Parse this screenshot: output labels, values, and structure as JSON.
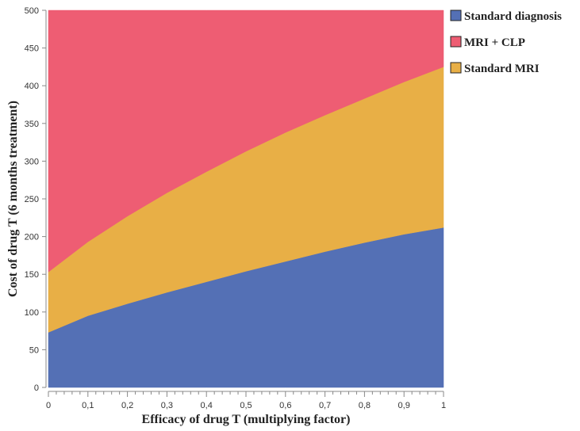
{
  "chart_data": {
    "type": "area",
    "xlabel": "Efficacy of drug T (multiplying factor)",
    "ylabel": "Cost of drug T (6 months treatment)",
    "xlim": [
      0,
      1
    ],
    "ylim": [
      0,
      500
    ],
    "x_ticks": [
      "0",
      "0,1",
      "0,2",
      "0,3",
      "0,4",
      "0,5",
      "0,6",
      "0,7",
      "0,8",
      "0,9",
      "1"
    ],
    "y_ticks": [
      "0",
      "50",
      "100",
      "150",
      "200",
      "250",
      "300",
      "350",
      "400",
      "450",
      "500"
    ],
    "x": [
      0,
      0.1,
      0.2,
      0.3,
      0.4,
      0.5,
      0.6,
      0.7,
      0.8,
      0.9,
      1.0
    ],
    "series": [
      {
        "name": "Standard diagnosis",
        "color": "#5470b5",
        "upper": [
          73,
          95,
          111,
          126,
          140,
          154,
          167,
          180,
          192,
          203,
          212
        ]
      },
      {
        "name": "Standard MRI",
        "color": "#e8af46",
        "upper": [
          153,
          193,
          227,
          258,
          286,
          313,
          338,
          361,
          383,
          405,
          425
        ]
      },
      {
        "name": "MRI + CLP",
        "color": "#ee5d73",
        "upper": [
          500,
          500,
          500,
          500,
          500,
          500,
          500,
          500,
          500,
          500,
          500
        ]
      }
    ],
    "legend": {
      "position": "right",
      "entries": [
        {
          "label": "Standard diagnosis",
          "color": "#5470b5"
        },
        {
          "label": "MRI + CLP",
          "color": "#ee5d73"
        },
        {
          "label": "Standard MRI",
          "color": "#e8af46"
        }
      ]
    }
  }
}
